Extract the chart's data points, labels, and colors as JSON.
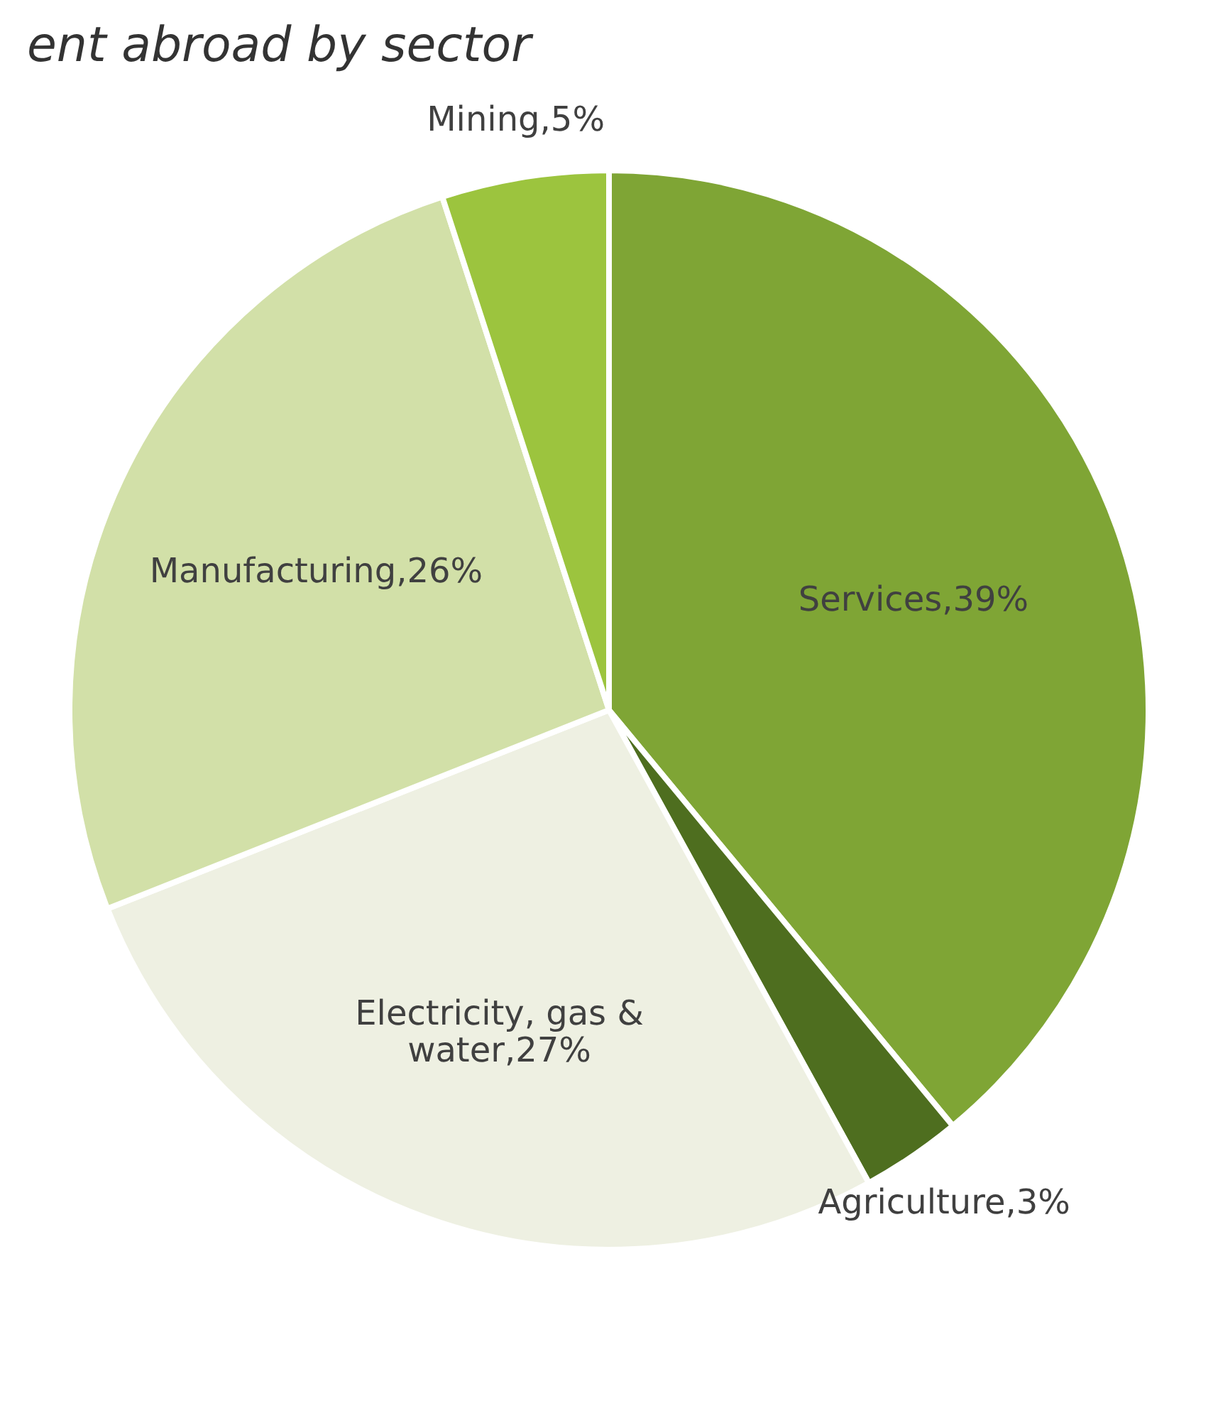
{
  "chart_data": {
    "type": "pie",
    "title": "ent abroad by sector",
    "categories": [
      "Services",
      "Agriculture",
      "Electricity, gas & water",
      "Manufacturing",
      "Mining"
    ],
    "values": [
      39,
      3,
      27,
      26,
      5
    ],
    "colors": [
      "#7fa535",
      "#4e6e1f",
      "#eef0e2",
      "#d2e0a8",
      "#9cc43e"
    ],
    "value_labels": [
      "39%",
      "3%",
      "27%",
      "26%",
      "5%"
    ],
    "legend": false
  }
}
